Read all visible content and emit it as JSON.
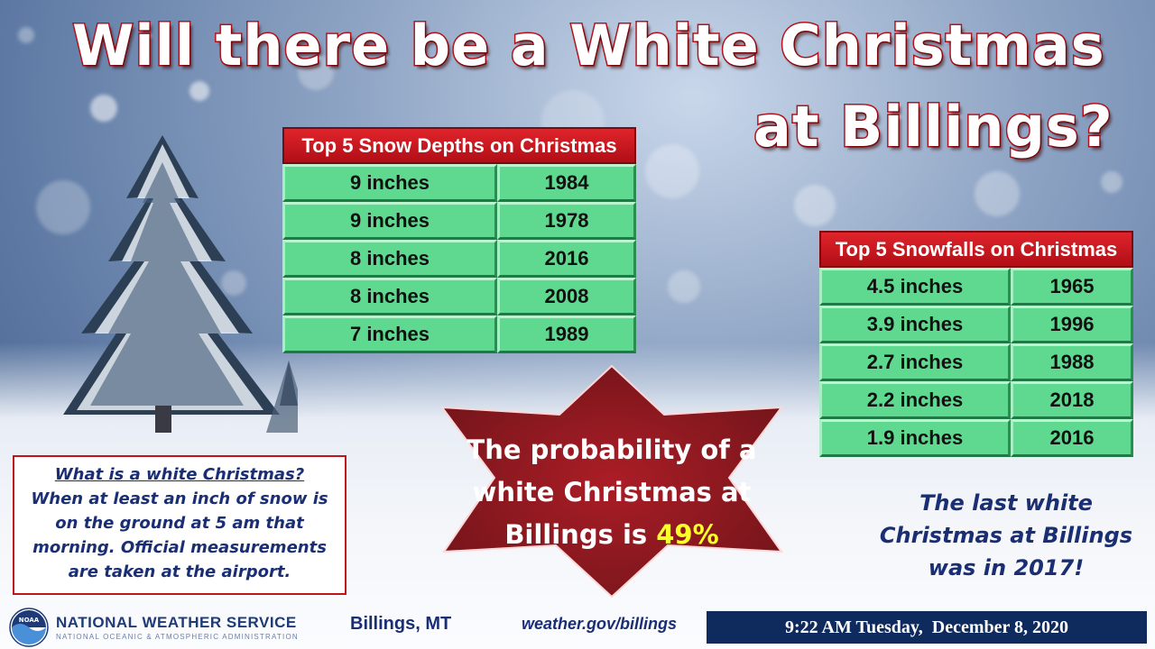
{
  "title": {
    "line1": "Will there be a White Christmas",
    "line2": "at Billings?"
  },
  "depth_table": {
    "header": "Top 5 Snow Depths on Christmas",
    "rows": [
      {
        "amount": "9 inches",
        "year": "1984"
      },
      {
        "amount": "9 inches",
        "year": "1978"
      },
      {
        "amount": "8 inches",
        "year": "2016"
      },
      {
        "amount": "8 inches",
        "year": "2008"
      },
      {
        "amount": "7 inches",
        "year": "1989"
      }
    ]
  },
  "snowfall_table": {
    "header": "Top 5 Snowfalls on Christmas",
    "rows": [
      {
        "amount": "4.5 inches",
        "year": "1965"
      },
      {
        "amount": "3.9 inches",
        "year": "1996"
      },
      {
        "amount": "2.7 inches",
        "year": "1988"
      },
      {
        "amount": "2.2 inches",
        "year": "2018"
      },
      {
        "amount": "1.9 inches",
        "year": "2016"
      }
    ]
  },
  "definition": {
    "question": "What is a white Christmas?",
    "line1": "When at least an inch of snow is",
    "line2": "on the ground at 5 am that",
    "line3": "morning. Official measurements",
    "line4": "are taken at the airport."
  },
  "probability": {
    "line1": "The probability of a",
    "line2": "white Christmas at",
    "line3_prefix": "Billings is ",
    "percent": "49%"
  },
  "last_white": {
    "line1": "The last white",
    "line2": "Christmas at Billings",
    "line3": "was in 2017!"
  },
  "footer": {
    "agency": "NATIONAL WEATHER SERVICE",
    "agency_sub": "NATIONAL OCEANIC & ATMOSPHERIC ADMINISTRATION",
    "logo_text": "NOAA",
    "city": "Billings, MT",
    "website": "weather.gov/billings",
    "timestamp": "9:22 AM Tuesday,  December 8, 2020"
  },
  "colors": {
    "title_outline": "#b3121b",
    "table_header": "#c8141c",
    "table_cell": "#5fd98f",
    "star": "#8a0d14",
    "percent": "#ffff2a",
    "navy_text": "#1a2e74",
    "date_bar": "#0f2a5c"
  }
}
